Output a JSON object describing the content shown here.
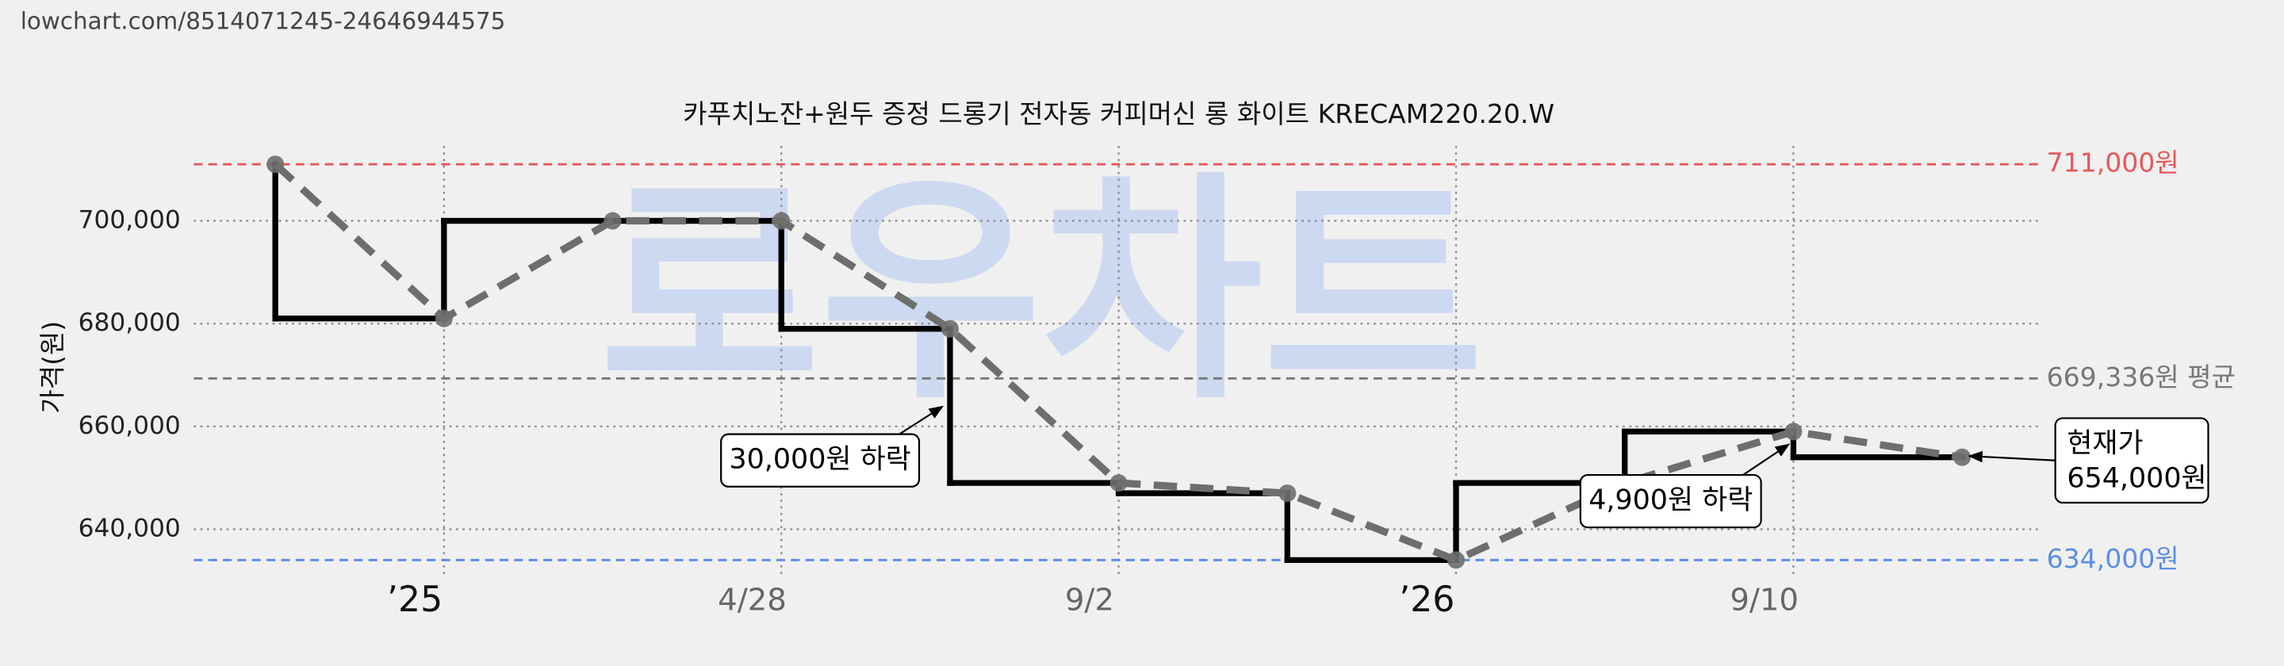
{
  "url": "lowchart.com/8514071245-24646944575",
  "chart_data": {
    "type": "line",
    "title": "카푸치노잔+원두 증정 드롱기 전자동 커피머신 롱 화이트 KRECAM220.20.W",
    "watermark": "로우차트",
    "y_label": "가격(원)",
    "categories": [
      null,
      "’25",
      null,
      "4/28",
      null,
      "9/2",
      null,
      "’26",
      null,
      "9/10",
      null
    ],
    "values": [
      711000,
      681000,
      700000,
      700000,
      679000,
      649000,
      647000,
      634000,
      649000,
      659000,
      654000
    ],
    "step_color": "#000000",
    "line_color": "#6e6e6e",
    "ylim": [
      631000,
      716000
    ],
    "yticks": [
      {
        "value": 640000,
        "label": "640,000"
      },
      {
        "value": 660000,
        "label": "660,000"
      },
      {
        "value": 680000,
        "label": "680,000"
      },
      {
        "value": 700000,
        "label": "700,000"
      }
    ],
    "grid": true,
    "reference_lines": [
      {
        "value": 711000,
        "label": "711,000원",
        "color": "#e5585a",
        "dash": "dashed"
      },
      {
        "value": 669336,
        "label": "669,336원 평균",
        "color": "#777777",
        "dash": "dashed"
      },
      {
        "value": 634000,
        "label": "634,000원",
        "color": "#5b8ee6",
        "dash": "dashed"
      }
    ],
    "annotations": [
      {
        "lines": [
          "30,000원 하락"
        ]
      },
      {
        "lines": [
          "4,900원 하락"
        ]
      },
      {
        "lines": [
          "현재가",
          "654,000원"
        ]
      }
    ]
  }
}
